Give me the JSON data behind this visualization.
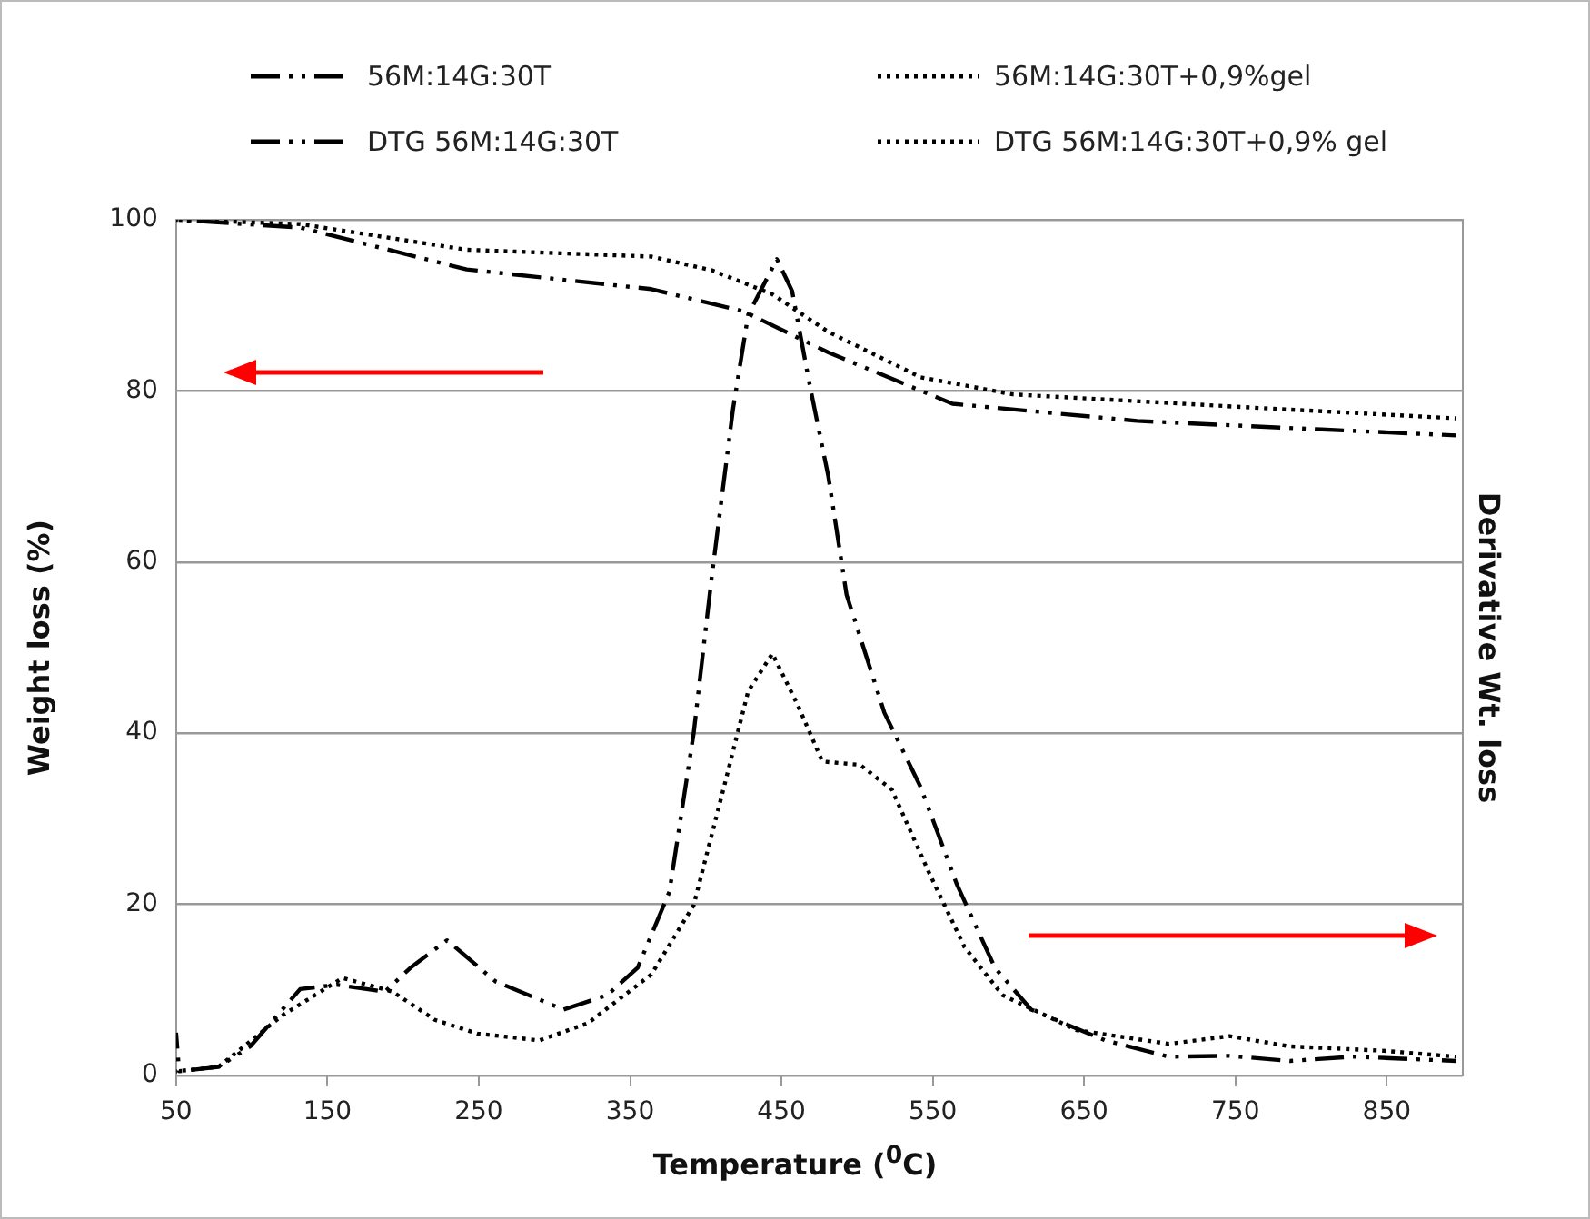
{
  "chart_data": {
    "type": "line",
    "xlabel": "Temperature ($^{0}$C)",
    "ylabel": "Weight loss (%)",
    "y2label": "Derivative Wt. loss",
    "xlim": [
      50,
      900
    ],
    "xticks": [
      50,
      150,
      250,
      350,
      450,
      550,
      650,
      750,
      850
    ],
    "ylim": [
      0,
      100
    ],
    "yticks": [
      0,
      20,
      40,
      60,
      80,
      100
    ],
    "grid": "y",
    "legend": "top",
    "marker": "none",
    "series": [
      {
        "name": "56M:14G:30T",
        "color": "#000000",
        "line_style": "dashed",
        "x": [
          50,
          132,
          242,
          364,
          425,
          481,
          563,
          685,
          807,
          896
        ],
        "values": [
          100,
          99.1,
          94.2,
          91.9,
          89.3,
          84.5,
          78.5,
          76.5,
          75.5,
          74.8
        ]
      },
      {
        "name": "56M:14G:30T+0,9%gel",
        "color": "#000000",
        "line_style": "dotted",
        "x": [
          50,
          132,
          242,
          364,
          404,
          444,
          481,
          542,
          603,
          767,
          896
        ],
        "values": [
          100,
          99.5,
          96.5,
          95.7,
          94.1,
          91.3,
          86.9,
          81.6,
          79.6,
          78.0,
          76.8
        ]
      },
      {
        "name": "DTG 56M:14G:30T",
        "color": "#000000",
        "line_style": "dashed",
        "x": [
          50,
          52,
          78,
          99,
          132,
          156,
          188,
          205,
          229,
          261,
          306,
          335,
          355,
          376,
          392,
          404,
          418,
          428,
          447,
          457,
          469,
          481,
          493,
          518,
          542,
          566,
          591,
          615,
          664,
          706,
          746,
          786,
          828,
          896
        ],
        "values": [
          5,
          0.5,
          1,
          3.4,
          10.1,
          10.6,
          9.8,
          12.6,
          15.8,
          11.0,
          7.7,
          9.4,
          12.6,
          21.5,
          40,
          58.4,
          77.9,
          88.9,
          95.4,
          91.7,
          80.4,
          70,
          56.2,
          42.4,
          33.7,
          22.3,
          12.6,
          7.7,
          4.1,
          2.2,
          2.3,
          1.7,
          2.2,
          1.7
        ]
      },
      {
        "name": "DTG 56M:14G:30T+0,9% gel",
        "color": "#000000",
        "line_style": "dotted",
        "x": [
          50,
          78,
          120,
          160,
          193,
          221,
          249,
          290,
          322,
          364,
          392,
          413,
          428,
          444,
          461,
          477,
          502,
          523,
          547,
          571,
          596,
          645,
          706,
          746,
          786,
          847,
          896
        ],
        "values": [
          0.5,
          1,
          7,
          11.4,
          9.8,
          6.5,
          4.9,
          4.1,
          6.1,
          11.8,
          19.9,
          34.4,
          44.9,
          49.3,
          43.2,
          36.7,
          36.3,
          33.4,
          23.9,
          15,
          9.4,
          5.3,
          3.7,
          4.6,
          3.4,
          2.9,
          2.2
        ]
      }
    ]
  }
}
